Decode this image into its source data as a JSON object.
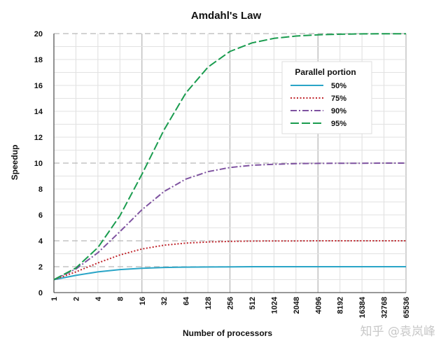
{
  "chart_data": {
    "type": "line",
    "title": "Amdahl's Law",
    "xlabel": "Number of processors",
    "ylabel": "Speedup",
    "x_scale": "log2",
    "x": [
      1,
      2,
      4,
      8,
      16,
      32,
      64,
      128,
      256,
      512,
      1024,
      2048,
      4096,
      8192,
      16384,
      32768,
      65536
    ],
    "x_tick_labels": [
      "1",
      "2",
      "4",
      "8",
      "16",
      "32",
      "64",
      "128",
      "256",
      "512",
      "1024",
      "2048",
      "4096",
      "8192",
      "16384",
      "32768",
      "65536"
    ],
    "ylim": [
      0,
      20
    ],
    "y_ticks": [
      0,
      2,
      4,
      6,
      8,
      10,
      12,
      14,
      16,
      18,
      20
    ],
    "grid": true,
    "legend": {
      "title": "Parallel portion",
      "placement": "top-right"
    },
    "series": [
      {
        "name": "50%",
        "color": "#2aa5c7",
        "dash": "solid",
        "values": [
          1.0,
          1.33,
          1.6,
          1.78,
          1.88,
          1.94,
          1.97,
          1.98,
          1.99,
          2.0,
          2.0,
          2.0,
          2.0,
          2.0,
          2.0,
          2.0,
          2.0
        ]
      },
      {
        "name": "75%",
        "color": "#c0262d",
        "dash": "dotted",
        "values": [
          1.0,
          1.6,
          2.29,
          2.91,
          3.37,
          3.66,
          3.82,
          3.91,
          3.95,
          3.98,
          3.99,
          3.99,
          4.0,
          4.0,
          4.0,
          4.0,
          4.0
        ]
      },
      {
        "name": "90%",
        "color": "#7e52a0",
        "dash": "dashdot",
        "values": [
          1.0,
          1.82,
          3.08,
          4.71,
          6.4,
          7.8,
          8.77,
          9.34,
          9.66,
          9.83,
          9.91,
          9.96,
          9.98,
          9.99,
          9.99,
          10.0,
          10.0
        ]
      },
      {
        "name": "95%",
        "color": "#1a9c4f",
        "dash": "longdash",
        "values": [
          1.0,
          1.9,
          3.48,
          5.93,
          9.14,
          12.55,
          15.42,
          17.41,
          18.62,
          19.28,
          19.63,
          19.81,
          19.91,
          19.95,
          19.98,
          19.99,
          19.99
        ]
      }
    ]
  },
  "watermark": "知乎 @袁岚峰"
}
